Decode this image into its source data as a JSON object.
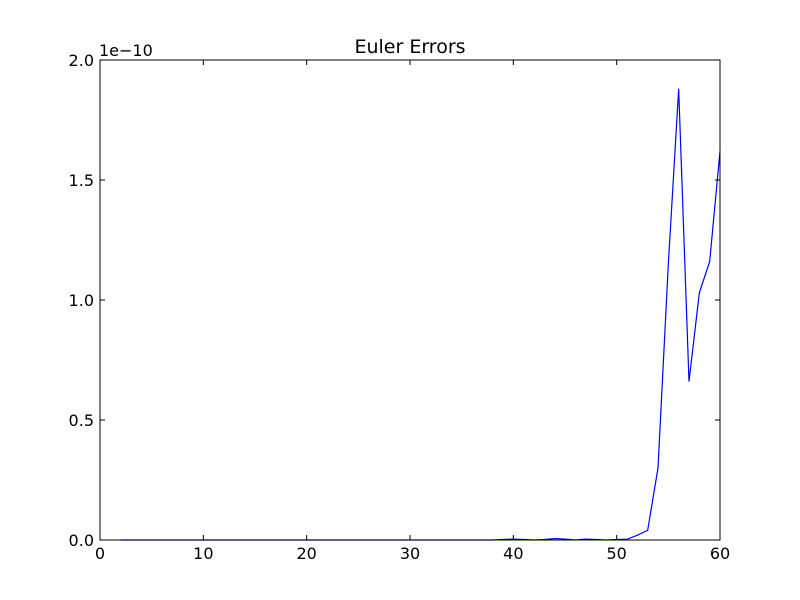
{
  "chart_data": {
    "type": "line",
    "title": "Euler Errors",
    "xlabel": "",
    "ylabel": "",
    "y_offset_label": "1e−10",
    "xlim": [
      0,
      60
    ],
    "ylim": [
      0,
      2.0
    ],
    "x_ticks": [
      0,
      10,
      20,
      30,
      40,
      50,
      60
    ],
    "x_tick_labels": [
      "0",
      "10",
      "20",
      "30",
      "40",
      "50",
      "60"
    ],
    "y_ticks": [
      0,
      0.5,
      1.0,
      1.5,
      2.0
    ],
    "y_tick_labels": [
      "0.0",
      "0.5",
      "1.0",
      "1.5",
      "2.0"
    ],
    "grid": false,
    "line_color": "#0000ff",
    "series": [
      {
        "x": [
          2,
          3,
          4,
          5,
          6,
          7,
          8,
          9,
          10,
          11,
          12,
          13,
          14,
          15,
          16,
          17,
          18,
          19,
          20,
          21,
          22,
          23,
          24,
          25,
          26,
          27,
          28,
          29,
          30,
          31,
          32,
          33,
          34,
          35,
          36,
          37,
          38,
          39,
          40,
          41,
          42,
          43,
          44,
          45,
          46,
          47,
          48,
          49,
          50,
          51,
          52,
          53,
          54,
          55,
          56,
          57,
          58,
          59,
          60
        ],
        "values": [
          0,
          0,
          0,
          0,
          0,
          0,
          0,
          0,
          0,
          0,
          0,
          0,
          0,
          0,
          0,
          0,
          0,
          0,
          0,
          0,
          0,
          0,
          0,
          0,
          0,
          0,
          0,
          0,
          0,
          0,
          0,
          0,
          0,
          0,
          0,
          0,
          0,
          0.002,
          0.004,
          0.002,
          0,
          0.002,
          0.006,
          0.004,
          0,
          0.004,
          0.002,
          0,
          0.002,
          0.003,
          0.02,
          0.04,
          0.3,
          1.15,
          1.88,
          0.66,
          1.03,
          1.16,
          1.62
        ]
      }
    ]
  }
}
